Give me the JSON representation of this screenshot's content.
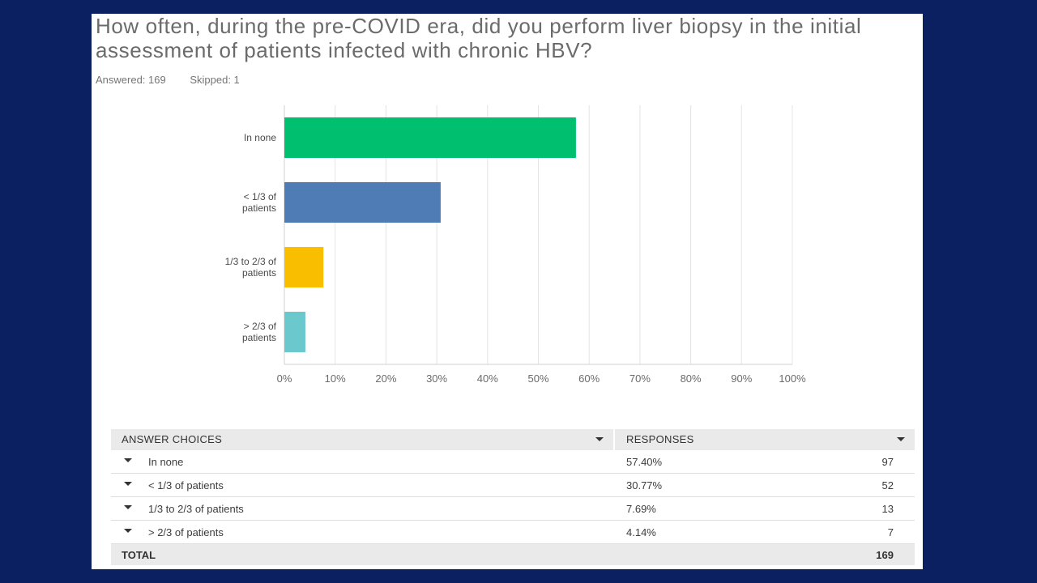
{
  "question": {
    "title": "How often, during the pre-COVID era, did you perform liver biopsy in the initial assessment of patients infected with chronic HBV?",
    "answered": "Answered: 169",
    "skipped": "Skipped: 1"
  },
  "colors": {
    "background": "#0b2060",
    "bar_colors": [
      "#00bf6f",
      "#507cb6",
      "#f9be00",
      "#6bc8cd"
    ]
  },
  "chart_data": {
    "type": "bar",
    "orientation": "horizontal",
    "categories": [
      [
        "In none"
      ],
      [
        "< 1/3 of",
        "patients"
      ],
      [
        "1/3 to 2/3 of",
        "patients"
      ],
      [
        "> 2/3 of",
        "patients"
      ]
    ],
    "values": [
      57.4,
      30.77,
      7.69,
      4.14
    ],
    "xlim": [
      0,
      100
    ],
    "xticks": [
      "0%",
      "10%",
      "20%",
      "30%",
      "40%",
      "50%",
      "60%",
      "70%",
      "80%",
      "90%",
      "100%"
    ],
    "grid": true
  },
  "table": {
    "header_choices": "ANSWER CHOICES",
    "header_responses": "RESPONSES",
    "rows": [
      {
        "choice": "In none",
        "percent": "57.40%",
        "count": "97"
      },
      {
        "choice": "< 1/3 of patients",
        "percent": "30.77%",
        "count": "52"
      },
      {
        "choice": "1/3 to 2/3 of patients",
        "percent": "7.69%",
        "count": "13"
      },
      {
        "choice": "> 2/3 of patients",
        "percent": "4.14%",
        "count": "7"
      }
    ],
    "total_label": "TOTAL",
    "total_count": "169"
  }
}
